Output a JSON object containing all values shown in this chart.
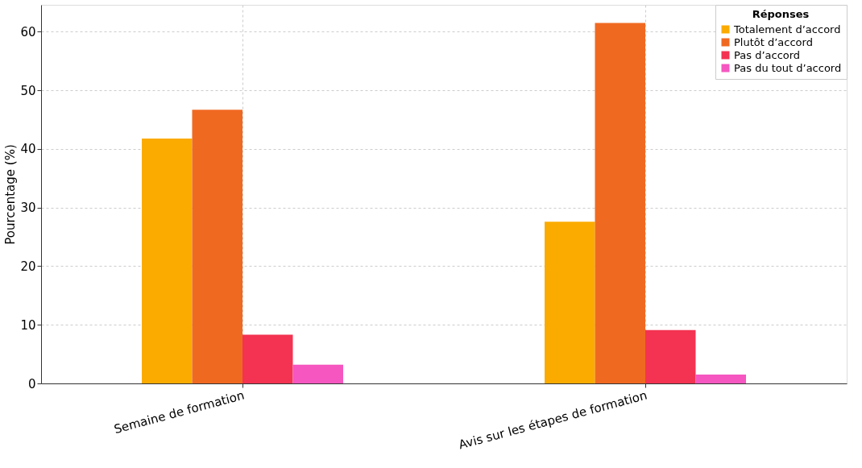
{
  "chart_data": {
    "type": "bar",
    "ylabel": "Pourcentage (%)",
    "legend_title": "Réponses",
    "categories": [
      "Semaine de formation",
      "Avis sur les étapes de formation"
    ],
    "series": [
      {
        "name": "Totalement d’accord",
        "color": "#fbab00",
        "values": [
          41.8,
          27.6
        ]
      },
      {
        "name": "Plutôt d’accord",
        "color": "#f06921",
        "values": [
          46.7,
          61.5
        ]
      },
      {
        "name": "Pas d’accord",
        "color": "#f33351",
        "values": [
          8.3,
          9.1
        ]
      },
      {
        "name": "Pas du tout d’accord",
        "color": "#f556c0",
        "values": [
          3.2,
          1.5
        ]
      }
    ],
    "ylim": [
      0,
      64.6
    ],
    "yticks": [
      0,
      10,
      20,
      30,
      40,
      50,
      60
    ],
    "grid": true,
    "legend": "top right"
  }
}
